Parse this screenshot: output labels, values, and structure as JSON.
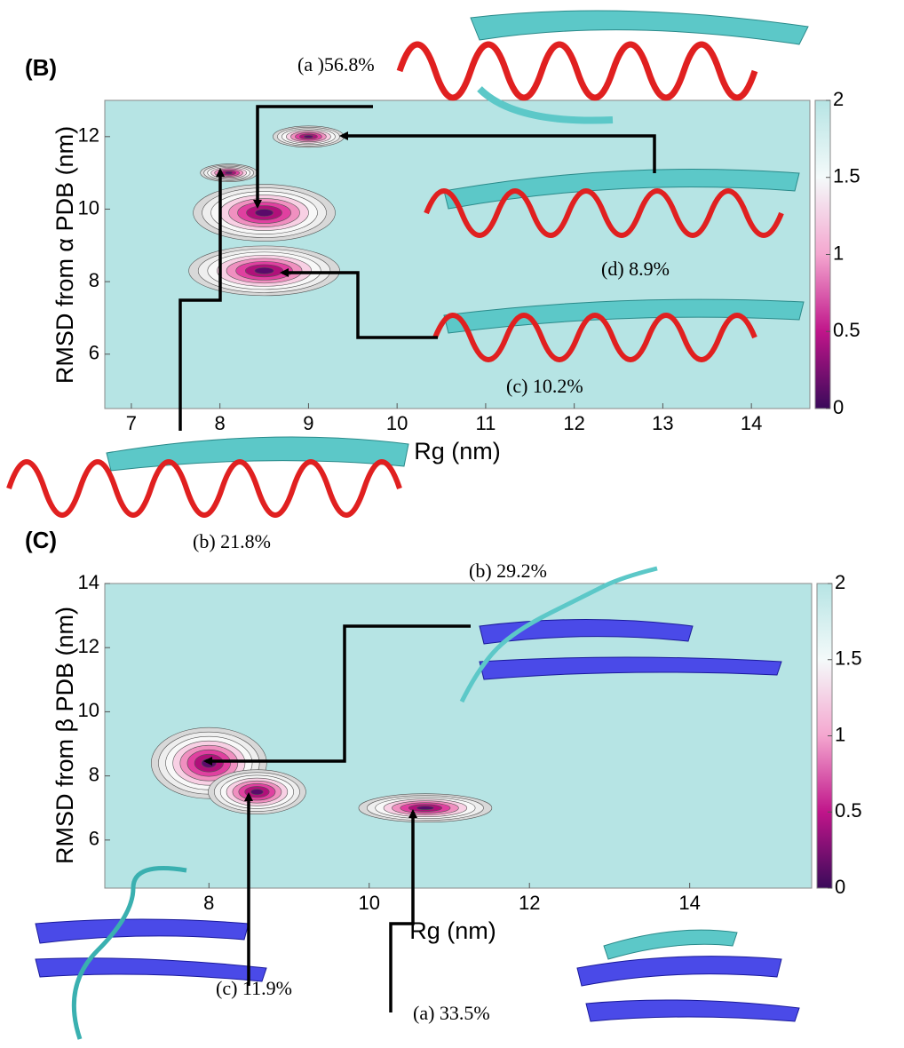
{
  "chart_data": [
    {
      "type": "contour",
      "panel": "(B)",
      "xlabel": "Rg (nm)",
      "ylabel": "RMSD from α PDB (nm)",
      "xlim": [
        6.7,
        14.6
      ],
      "ylim": [
        4.5,
        13
      ],
      "xticks": [
        7,
        8,
        9,
        10,
        11,
        12,
        13,
        14
      ],
      "yticks": [
        6,
        8,
        10,
        12
      ],
      "clim": [
        0,
        2
      ],
      "cticks": [
        0,
        0.5,
        1,
        1.5,
        2
      ],
      "basins": {
        "x": [
          8.1,
          8.5,
          8.5,
          9.0
        ],
        "y": [
          11.0,
          9.9,
          8.3,
          12.0
        ]
      },
      "annotations": [
        "(a )56.8%",
        "(d) 8.9%",
        "(c) 10.2%",
        "(b) 21.8%"
      ]
    },
    {
      "type": "contour",
      "panel": "(C)",
      "xlabel": "Rg (nm)",
      "ylabel": "RMSD from β PDB (nm)",
      "xlim": [
        6.7,
        15.5
      ],
      "ylim": [
        4.5,
        14
      ],
      "xticks": [
        8,
        10,
        12,
        14
      ],
      "yticks": [
        6,
        8,
        10,
        12,
        14
      ],
      "clim": [
        0,
        2
      ],
      "cticks": [
        0,
        0.5,
        1,
        1.5,
        2
      ],
      "basins": {
        "x": [
          8.0,
          8.6,
          10.7
        ],
        "y": [
          8.4,
          7.5,
          7.0
        ]
      },
      "annotations": [
        "(b) 29.2%",
        "(c) 11.9%",
        "(a) 33.5%"
      ]
    }
  ]
}
